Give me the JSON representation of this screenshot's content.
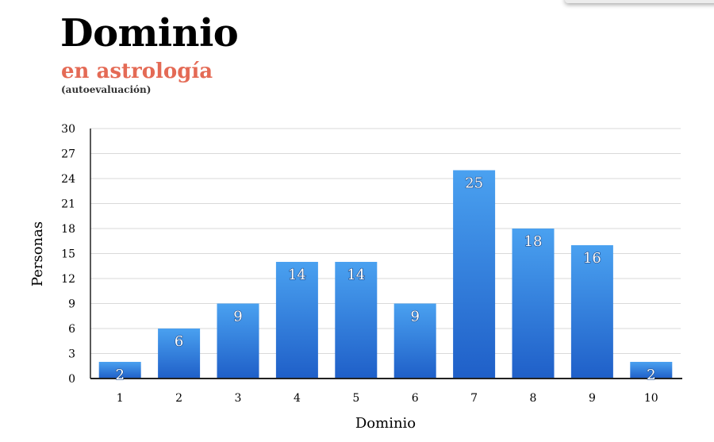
{
  "header": {
    "title": "Dominio",
    "subtitle": "en astrología",
    "note": "(autoevaluación)"
  },
  "colors": {
    "title": "#000000",
    "subtitle": "#e46a55",
    "bar_top": "#4aa1f0",
    "bar_bottom": "#1f5fc8",
    "grid": "#d9d9d9"
  },
  "chart_data": {
    "type": "bar",
    "xlabel": "Dominio",
    "ylabel": "Personas",
    "categories": [
      "1",
      "2",
      "3",
      "4",
      "5",
      "6",
      "7",
      "8",
      "9",
      "10"
    ],
    "values": [
      2,
      6,
      9,
      14,
      14,
      9,
      25,
      18,
      16,
      2
    ],
    "ylim": [
      0,
      30
    ],
    "yticks": [
      0,
      3,
      6,
      9,
      12,
      15,
      18,
      21,
      24,
      27,
      30
    ],
    "grid": true,
    "data_labels": true
  }
}
